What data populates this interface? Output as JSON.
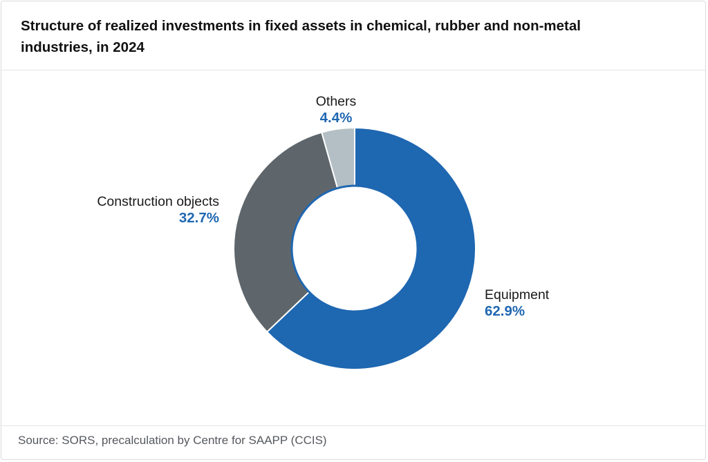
{
  "title": "Structure of realized investments in fixed assets in chemical, rubber and non-metal industries, in 2024",
  "source": "Source: SORS, precalculation by Centre for SAAPP (CCIS)",
  "colors": {
    "value_text": "#1f67b1",
    "inner_ring": "#1f67b1",
    "slice_border": "#ffffff"
  },
  "chart_data": {
    "type": "pie",
    "variant": "donut",
    "slices": [
      {
        "label": "Equipment",
        "value": 62.9,
        "value_label": "62.9%",
        "color": "#1e67b1"
      },
      {
        "label": "Construction objects",
        "value": 32.7,
        "value_label": "32.7%",
        "color": "#5e666b"
      },
      {
        "label": "Others",
        "value": 4.4,
        "value_label": "4.4%",
        "color": "#b3bfc4"
      }
    ],
    "start_angle_deg": 0,
    "direction": "clockwise"
  }
}
